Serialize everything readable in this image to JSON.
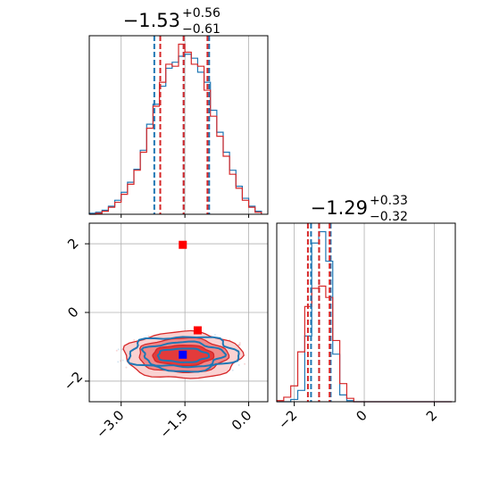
{
  "chart_data": {
    "type": "corner",
    "parameters": [
      {
        "title_main": "−1.53",
        "title_sup": "+0.56",
        "title_sub": "−0.61",
        "range": [
          -3.75,
          0.45
        ],
        "ticks": [
          -3.0,
          -1.5,
          0.0
        ],
        "tick_labels": [
          "−3.0",
          "−1.5",
          "0.0"
        ],
        "quantiles_blue": [
          -2.22,
          -1.53,
          -0.93
        ],
        "quantiles_red": [
          -2.08,
          -1.53,
          -0.97
        ]
      },
      {
        "title_main": "−1.29",
        "title_sup": "+0.33",
        "title_sub": "−0.32",
        "range": [
          -2.5,
          2.6
        ],
        "ticks": [
          -2,
          0,
          2
        ],
        "tick_labels": [
          "−2",
          "0",
          "2"
        ],
        "quantiles_blue": [
          -1.52,
          -1.29,
          -0.96
        ],
        "quantiles_red": [
          -1.61,
          -1.29,
          -0.99
        ]
      }
    ],
    "hist_x1": {
      "bin_edges": [
        -3.75,
        -3.6,
        -3.45,
        -3.3,
        -3.15,
        -3.0,
        -2.85,
        -2.7,
        -2.55,
        -2.4,
        -2.25,
        -2.1,
        -1.95,
        -1.8,
        -1.65,
        -1.5,
        -1.35,
        -1.2,
        -1.05,
        -0.9,
        -0.75,
        -0.6,
        -0.45,
        -0.3,
        -0.15,
        0.0,
        0.15,
        0.3
      ],
      "blue": [
        1,
        2,
        4,
        8,
        14,
        22,
        32,
        45,
        64,
        90,
        110,
        128,
        146,
        152,
        158,
        160,
        156,
        142,
        132,
        104,
        82,
        62,
        44,
        28,
        16,
        8,
        3
      ],
      "red": [
        0,
        1,
        3,
        7,
        12,
        20,
        30,
        44,
        62,
        86,
        108,
        132,
        150,
        148,
        170,
        162,
        150,
        148,
        124,
        98,
        78,
        58,
        40,
        26,
        14,
        7,
        2
      ]
    },
    "hist_x2": {
      "bin_edges": [
        -2.5,
        -2.3,
        -2.1,
        -1.9,
        -1.7,
        -1.5,
        -1.3,
        -1.1,
        -0.9,
        -0.7,
        -0.5,
        -0.3,
        -0.1,
        0.1,
        0.3,
        0.5,
        0.7,
        0.9,
        1.1,
        1.3,
        1.5,
        1.7,
        1.9,
        2.1,
        2.3,
        2.5
      ],
      "blue": [
        0,
        0,
        2,
        10,
        58,
        140,
        150,
        124,
        42,
        6,
        1,
        0,
        0,
        0,
        0,
        0,
        0,
        0,
        0,
        0,
        0,
        0,
        0,
        0,
        0
      ],
      "red": [
        1,
        4,
        14,
        44,
        84,
        100,
        102,
        92,
        54,
        16,
        3,
        0,
        0,
        0,
        0,
        0,
        0,
        0,
        0,
        0,
        0,
        0,
        0,
        0,
        0
      ]
    },
    "markers": [
      {
        "x": -1.55,
        "y": 1.97,
        "color": "#ff0000"
      },
      {
        "x": -1.2,
        "y": -0.52,
        "color": "#ff0000"
      },
      {
        "x": -1.55,
        "y": -1.23,
        "color": "#0000ff"
      }
    ],
    "contour_center": {
      "x": -1.55,
      "y": -1.25
    },
    "colors": {
      "blue": "#1f77b4",
      "red": "#d62728",
      "grid": "#b0b0b0"
    },
    "grid": true
  }
}
